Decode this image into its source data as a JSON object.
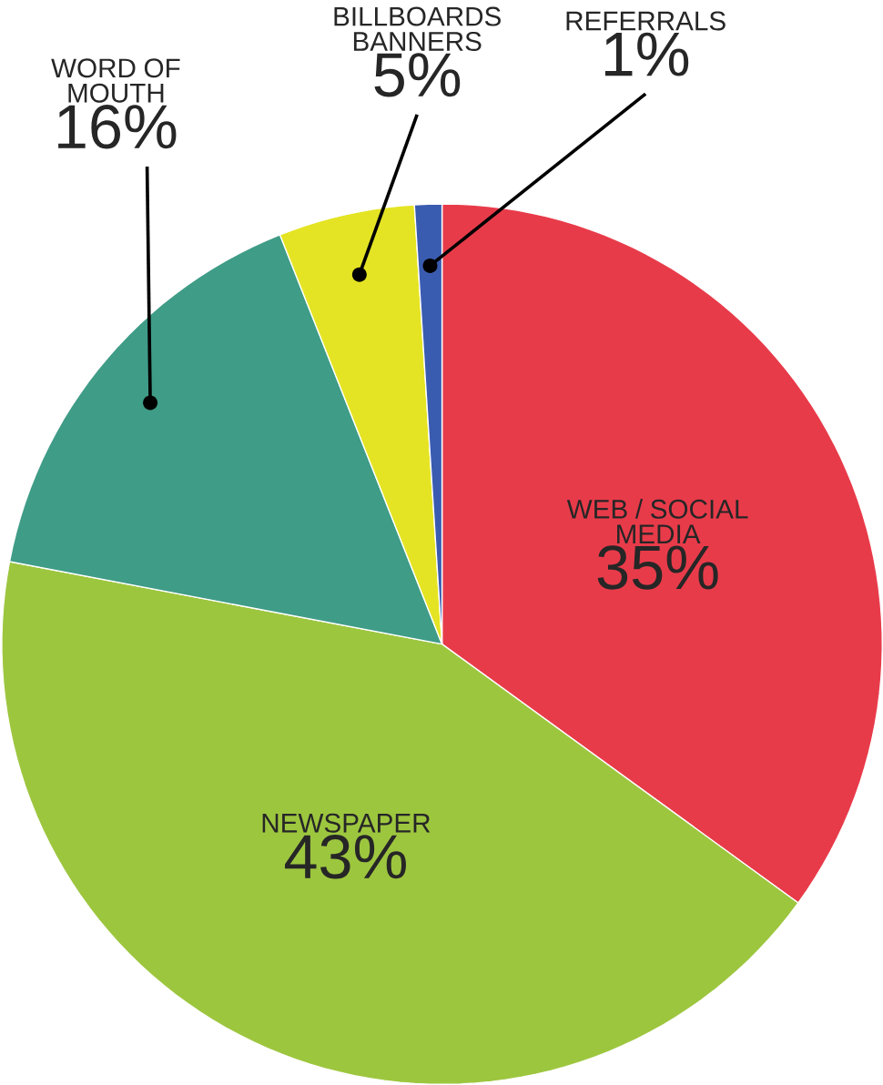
{
  "chart_data": {
    "type": "pie",
    "categories": [
      "WEB / SOCIAL MEDIA",
      "NEWSPAPER",
      "WORD OF MOUTH",
      "BILLBOARDS BANNERS",
      "REFERRALS"
    ],
    "values": [
      35,
      43,
      16,
      5,
      1
    ],
    "value_labels": [
      "35%",
      "43%",
      "16%",
      "5%",
      "1%"
    ],
    "colors": [
      "#e83b4a",
      "#9dc63f",
      "#3f9c87",
      "#e4e424",
      "#3a5cb0"
    ]
  }
}
